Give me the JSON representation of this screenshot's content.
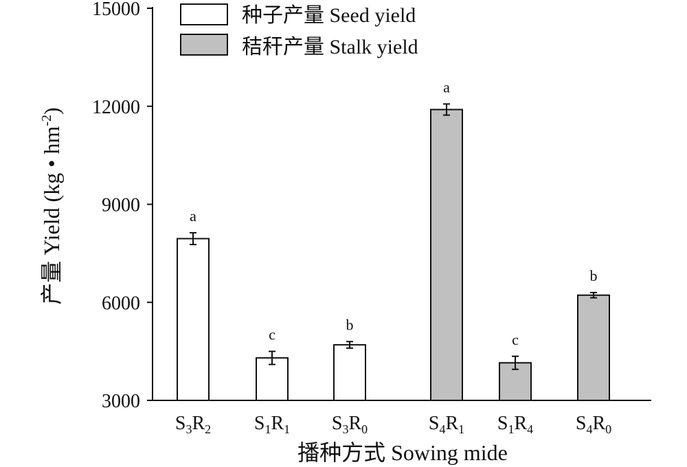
{
  "chart_data": {
    "type": "bar",
    "xlabel": "播种方式 Sowing mide",
    "ylabel_main": "产量 Yield (kg • hm",
    "ylabel_sup": "-2",
    "ylabel_close": ")",
    "ylim": [
      3000,
      15000
    ],
    "yticks": [
      "3000",
      "6000",
      "9000",
      "12000",
      "15000"
    ],
    "categories": [
      {
        "base": "S",
        "s1": "3",
        "mid": "R",
        "s2": "2"
      },
      {
        "base": "S",
        "s1": "1",
        "mid": "R",
        "s2": "1"
      },
      {
        "base": "S",
        "s1": "3",
        "mid": "R",
        "s2": "0"
      },
      {
        "base": "S",
        "s1": "4",
        "mid": "R",
        "s2": "1"
      },
      {
        "base": "S",
        "s1": "1",
        "mid": "R",
        "s2": "4"
      },
      {
        "base": "S",
        "s1": "4",
        "mid": "R",
        "s2": "0"
      }
    ],
    "series": [
      {
        "name": "种子产量 Seed yield",
        "color": "#ffffff",
        "bars": [
          {
            "category_index": 0,
            "value": 7950,
            "error": 180,
            "letter": "a"
          },
          {
            "category_index": 1,
            "value": 4300,
            "error": 200,
            "letter": "c"
          },
          {
            "category_index": 2,
            "value": 4700,
            "error": 100,
            "letter": "b"
          }
        ]
      },
      {
        "name": "秸秆产量 Stalk yield",
        "color": "#c0c0c0",
        "bars": [
          {
            "category_index": 3,
            "value": 11900,
            "error": 170,
            "letter": "a"
          },
          {
            "category_index": 4,
            "value": 4150,
            "error": 200,
            "letter": "c"
          },
          {
            "category_index": 5,
            "value": 6220,
            "error": 80,
            "letter": "b"
          }
        ]
      }
    ],
    "legend_position": "top-left",
    "grid": false
  }
}
